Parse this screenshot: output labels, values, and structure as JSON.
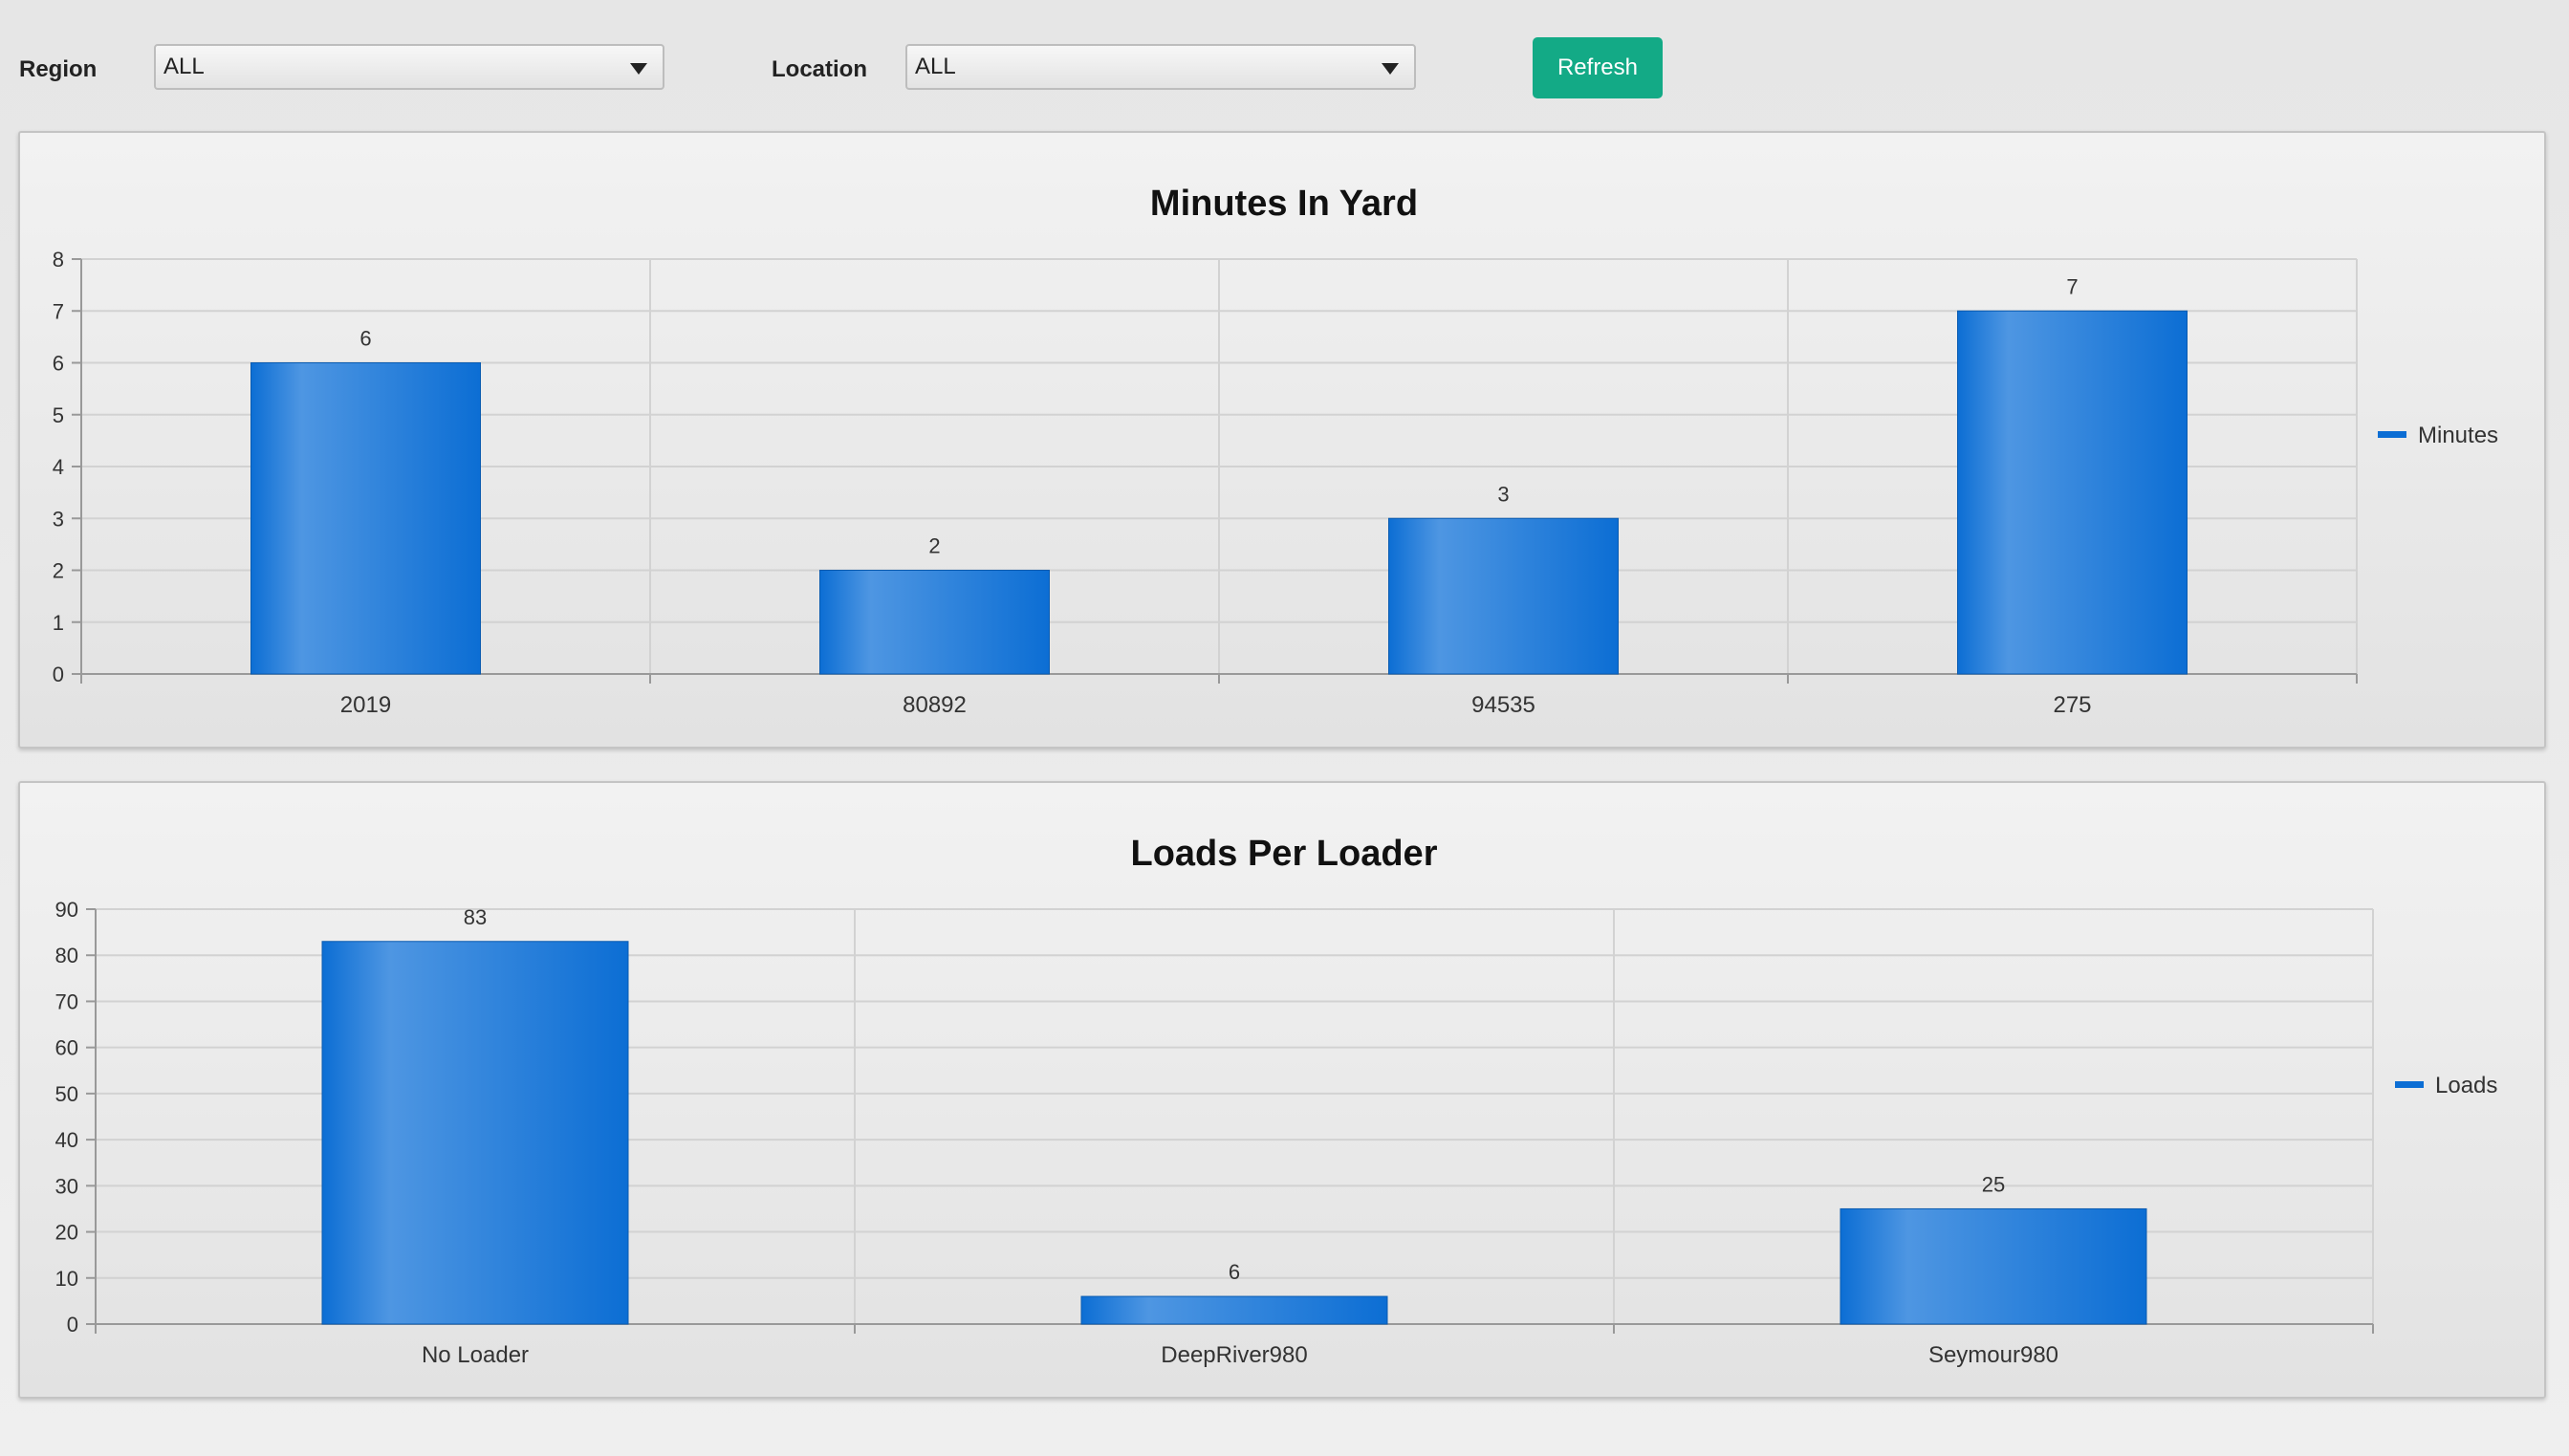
{
  "filters": {
    "region_label": "Region",
    "region_value": "ALL",
    "location_label": "Location",
    "location_value": "ALL",
    "refresh_label": "Refresh"
  },
  "colors": {
    "bar": "#0c6ed4",
    "bar_highlight": "#4e96e2",
    "refresh": "#13aa86"
  },
  "chart_data": [
    {
      "type": "bar",
      "title": "Minutes In Yard",
      "categories": [
        "2019",
        "80892",
        "94535",
        "275"
      ],
      "series": [
        {
          "name": "Minutes",
          "values": [
            6,
            2,
            3,
            7
          ]
        }
      ],
      "ylim": [
        0,
        8
      ],
      "yticks": [
        0,
        1,
        2,
        3,
        4,
        5,
        6,
        7,
        8
      ],
      "grid": true,
      "legend": "right"
    },
    {
      "type": "bar",
      "title": "Loads Per Loader",
      "categories": [
        "No Loader",
        "DeepRiver980",
        "Seymour980"
      ],
      "series": [
        {
          "name": "Loads",
          "values": [
            83,
            6,
            25
          ]
        }
      ],
      "ylim": [
        0,
        90
      ],
      "yticks": [
        0,
        10,
        20,
        30,
        40,
        50,
        60,
        70,
        80,
        90
      ],
      "grid": true,
      "legend": "right"
    }
  ]
}
